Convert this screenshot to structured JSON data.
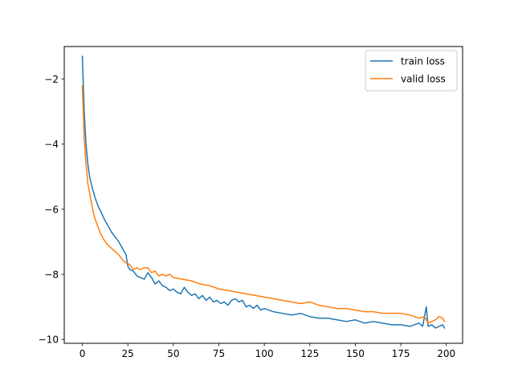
{
  "chart_data": {
    "type": "line",
    "title": "",
    "xlabel": "",
    "ylabel": "",
    "xlim": [
      -9.95,
      208.95
    ],
    "ylim": [
      -10.12,
      -1.0
    ],
    "xticks": [
      0,
      25,
      50,
      75,
      100,
      125,
      150,
      175,
      200
    ],
    "xtick_labels": [
      "0",
      "25",
      "50",
      "75",
      "100",
      "125",
      "150",
      "175",
      "200"
    ],
    "yticks": [
      -10,
      -8,
      -6,
      -4,
      -2
    ],
    "ytick_labels": [
      "−10",
      "−8",
      "−6",
      "−4",
      "−2"
    ],
    "grid": false,
    "legend_position": "top-right",
    "series": [
      {
        "name": "train loss",
        "color": "#1f77b4",
        "x": [
          0,
          1,
          2,
          3,
          4,
          5,
          6,
          7,
          8,
          9,
          10,
          12,
          14,
          16,
          18,
          20,
          22,
          24,
          25,
          26,
          28,
          30,
          32,
          34,
          36,
          38,
          40,
          42,
          44,
          46,
          48,
          50,
          52,
          54,
          56,
          58,
          60,
          62,
          64,
          66,
          68,
          70,
          72,
          74,
          76,
          78,
          80,
          82,
          84,
          86,
          88,
          90,
          92,
          94,
          96,
          98,
          100,
          105,
          110,
          115,
          120,
          125,
          130,
          135,
          140,
          145,
          150,
          155,
          160,
          165,
          170,
          175,
          180,
          185,
          187,
          189,
          190,
          192,
          194,
          196,
          198,
          199
        ],
        "y": [
          -1.3,
          -3.0,
          -4.0,
          -4.6,
          -5.0,
          -5.25,
          -5.45,
          -5.65,
          -5.8,
          -5.95,
          -6.05,
          -6.3,
          -6.5,
          -6.7,
          -6.85,
          -7.0,
          -7.2,
          -7.4,
          -7.75,
          -7.85,
          -7.9,
          -8.05,
          -8.1,
          -8.15,
          -7.95,
          -8.1,
          -8.3,
          -8.2,
          -8.35,
          -8.4,
          -8.5,
          -8.45,
          -8.55,
          -8.6,
          -8.4,
          -8.55,
          -8.65,
          -8.6,
          -8.75,
          -8.65,
          -8.8,
          -8.7,
          -8.85,
          -8.8,
          -8.9,
          -8.85,
          -8.95,
          -8.8,
          -8.75,
          -8.85,
          -8.8,
          -9.0,
          -8.95,
          -9.05,
          -8.95,
          -9.1,
          -9.05,
          -9.15,
          -9.2,
          -9.25,
          -9.2,
          -9.3,
          -9.35,
          -9.35,
          -9.4,
          -9.45,
          -9.4,
          -9.5,
          -9.45,
          -9.5,
          -9.55,
          -9.55,
          -9.6,
          -9.5,
          -9.6,
          -9.0,
          -9.6,
          -9.55,
          -9.65,
          -9.6,
          -9.55,
          -9.65
        ]
      },
      {
        "name": "valid loss",
        "color": "#ff7f0e",
        "x": [
          0,
          1,
          2,
          3,
          4,
          5,
          6,
          7,
          8,
          9,
          10,
          12,
          14,
          16,
          18,
          20,
          22,
          24,
          26,
          28,
          30,
          32,
          34,
          36,
          38,
          40,
          42,
          44,
          46,
          48,
          50,
          55,
          60,
          65,
          70,
          75,
          80,
          85,
          90,
          95,
          100,
          105,
          110,
          115,
          120,
          125,
          130,
          135,
          140,
          145,
          150,
          155,
          160,
          165,
          170,
          175,
          180,
          185,
          188,
          190,
          192,
          194,
          196,
          198,
          199
        ],
        "y": [
          -2.2,
          -3.8,
          -4.6,
          -5.2,
          -5.5,
          -5.8,
          -6.1,
          -6.3,
          -6.45,
          -6.6,
          -6.75,
          -6.95,
          -7.1,
          -7.2,
          -7.3,
          -7.4,
          -7.55,
          -7.65,
          -7.7,
          -7.85,
          -7.8,
          -7.85,
          -7.8,
          -7.8,
          -7.95,
          -7.9,
          -8.05,
          -8.0,
          -8.05,
          -8.0,
          -8.1,
          -8.15,
          -8.2,
          -8.3,
          -8.35,
          -8.45,
          -8.5,
          -8.55,
          -8.6,
          -8.65,
          -8.7,
          -8.75,
          -8.8,
          -8.85,
          -8.9,
          -8.85,
          -8.95,
          -9.0,
          -9.05,
          -9.05,
          -9.1,
          -9.15,
          -9.15,
          -9.2,
          -9.2,
          -9.2,
          -9.25,
          -9.35,
          -9.3,
          -9.5,
          -9.45,
          -9.4,
          -9.3,
          -9.35,
          -9.45
        ]
      }
    ]
  }
}
